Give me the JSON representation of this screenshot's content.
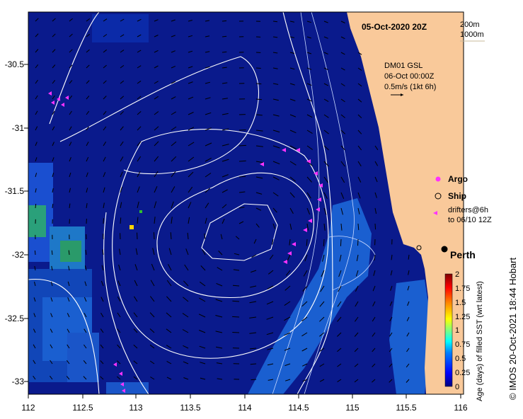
{
  "title": "05-Oct-2020 20Z",
  "depth_contours": [
    "200m",
    "1000m"
  ],
  "model_info": {
    "line1": "DM01 GSL",
    "line2": "06-Oct 00:00Z",
    "line3": "0.5m/s (1kt 6h)"
  },
  "legend": {
    "argo": "Argo",
    "ship": "Ship",
    "drifters_line1": "drifters@6h",
    "drifters_line2": "to 06/10 12Z"
  },
  "place": "Perth",
  "colorbar": {
    "label": "Age (days) of filled SST (wrt latest)",
    "ticks": [
      "2",
      "1.75",
      "1.5",
      "1.25",
      "1",
      "0.75",
      "0.5",
      "0.25",
      "0"
    ]
  },
  "credit": "© IMOS 20-Oct-2021 18:44 Hobart",
  "axes": {
    "x_ticks": [
      "112",
      "112.5",
      "113",
      "113.5",
      "114",
      "114.5",
      "115",
      "115.5",
      "116"
    ],
    "y_ticks": [
      "-30.5",
      "-31",
      "-31.5",
      "-32",
      "-32.5",
      "-33"
    ],
    "x_range": [
      112,
      116.1
    ],
    "y_range": [
      -33.1,
      -30.05
    ]
  },
  "colors": {
    "ocean": "#0a1a8c",
    "land": "#f9c99a",
    "contour": "#ffffff",
    "argo": "#ff33ff",
    "drifter": "#ff33ff"
  }
}
